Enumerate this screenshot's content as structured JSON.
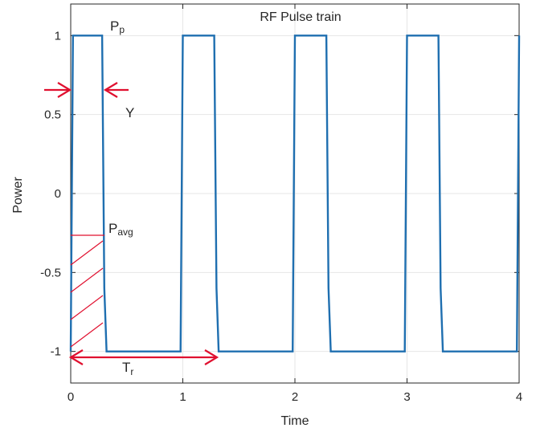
{
  "chart_data": {
    "type": "line",
    "title": "RF Pulse train",
    "xlabel": "Time",
    "ylabel": "Power",
    "xlim": [
      0,
      4
    ],
    "ylim": [
      -1.2,
      1.2
    ],
    "xticks": [
      0,
      1,
      2,
      3,
      4
    ],
    "yticks": [
      -1,
      -0.5,
      0,
      0.5,
      1
    ],
    "xtick_labels": [
      "0",
      "1",
      "2",
      "3",
      "4"
    ],
    "ytick_labels": [
      "-1",
      "-0.5",
      "0",
      "0.5",
      "1"
    ],
    "grid": true,
    "line_color": "#1f6fb0",
    "annotation_color": "#e0102f",
    "series": [
      {
        "x": [
          0,
          0.02,
          0.28,
          0.3,
          0.32,
          0.98,
          1.0,
          1.28,
          1.3,
          1.32,
          1.98,
          2.0,
          2.28,
          2.3,
          2.32,
          2.98,
          3.0,
          3.28,
          3.3,
          3.32,
          3.98,
          4.0
        ],
        "y": [
          -1,
          1,
          1,
          -0.6,
          -1,
          -1,
          1,
          1,
          -0.6,
          -1,
          -1,
          1,
          1,
          -0.6,
          -1,
          -1,
          1,
          1,
          -0.6,
          -1,
          -1,
          1
        ]
      }
    ],
    "annotations": {
      "peak_label_main": "P",
      "peak_label_sub": "p",
      "width_label": "Y",
      "avg_label_main": "P",
      "avg_label_sub": "avg",
      "period_label_main": "T",
      "period_label_sub": "r"
    }
  }
}
